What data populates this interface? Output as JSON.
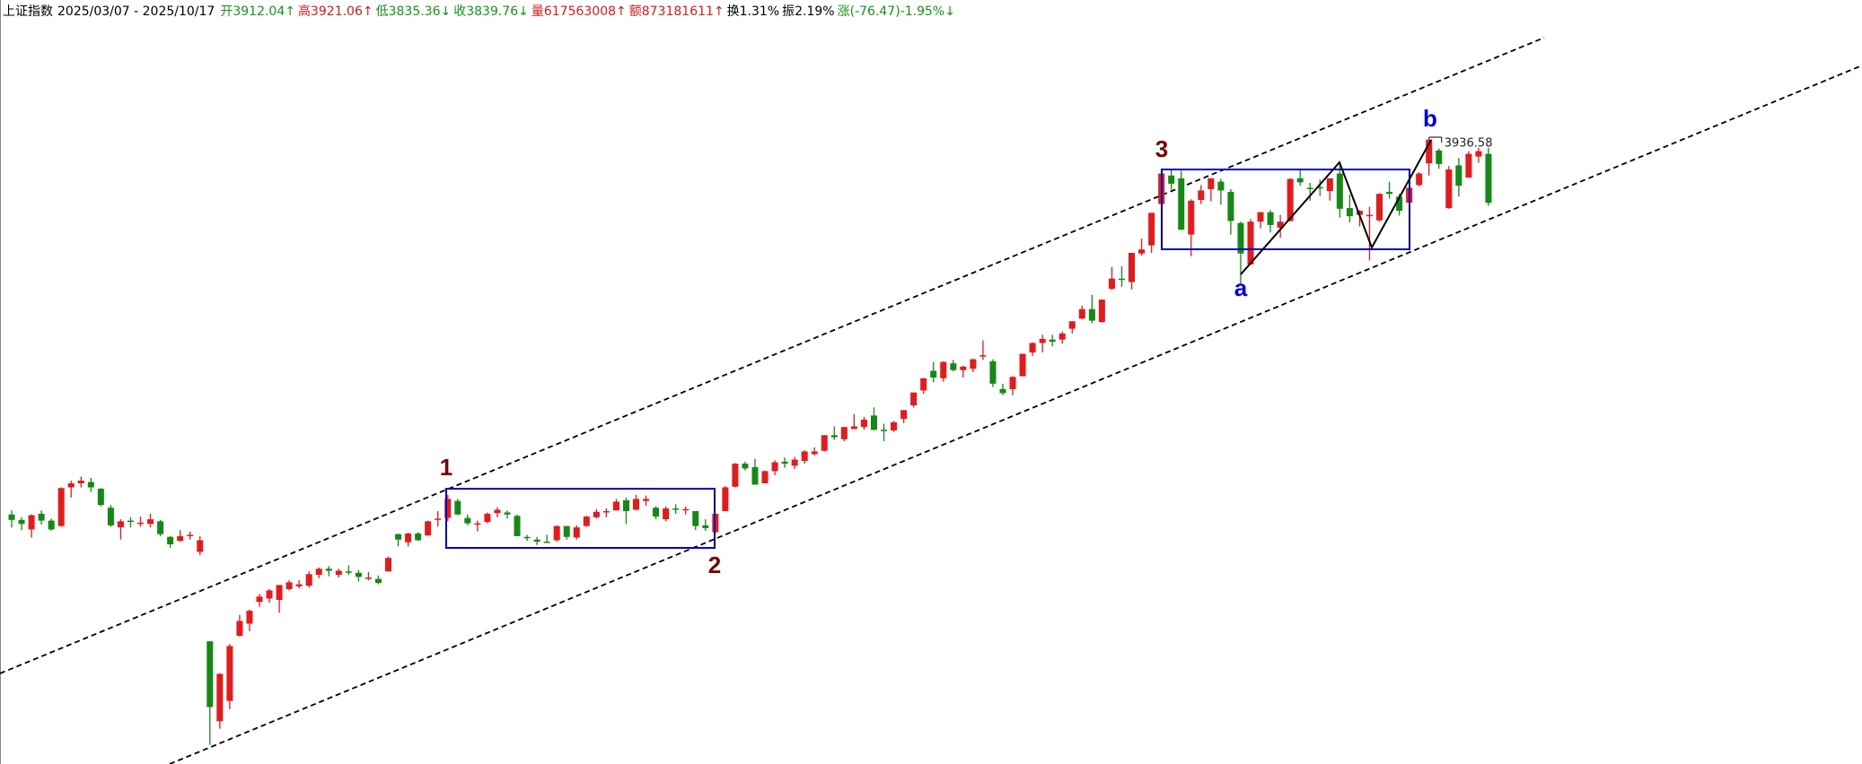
{
  "chart_data": {
    "type": "candlestick",
    "title": "上证指数",
    "period": "2025/03/07 - 2025/10/17",
    "quote": [
      {
        "text": "开3912.04↑",
        "color": "#119911"
      },
      {
        "text": "高3921.06↑",
        "color": "#e0191b"
      },
      {
        "text": "低3835.36↓",
        "color": "#119911"
      },
      {
        "text": "收3839.76↓",
        "color": "#119911"
      },
      {
        "text": "量617563008↑",
        "color": "#e0191b"
      },
      {
        "text": "额873181611↑",
        "color": "#e0191b"
      },
      {
        "text": "换1.31%",
        "color": "#000000"
      },
      {
        "text": "振2.19%",
        "color": "#000000"
      },
      {
        "text": "涨(-76.47)-1.95%↓",
        "color": "#119911"
      }
    ],
    "up_color": "#e8191b",
    "down_color": "#138a13",
    "open": [
      3380,
      3372,
      3358,
      3381,
      3371,
      3363,
      3420,
      3426,
      3428,
      3418,
      3390,
      3361,
      3371,
      3367,
      3366,
      3370,
      3347,
      3341,
      3350,
      3325,
      3193,
      3075,
      3105,
      3201,
      3219,
      3251,
      3256,
      3254,
      3270,
      3274,
      3275,
      3291,
      3300,
      3291,
      3296,
      3294,
      3287,
      3285,
      3296,
      3351,
      3339,
      3352,
      3349,
      3372,
      3375,
      3400,
      3375,
      3366,
      3369,
      3382,
      3383,
      3378,
      3347,
      3343,
      3340,
      3342,
      3363,
      3346,
      3363,
      3376,
      3384,
      3386,
      3401,
      3387,
      3400,
      3390,
      3373,
      3389,
      3387,
      3385,
      3364,
      3354,
      3385,
      3421,
      3455,
      3450,
      3426,
      3444,
      3458,
      3452,
      3459,
      3469,
      3474,
      3497,
      3491,
      3506,
      3509,
      3526,
      3505,
      3504,
      3521,
      3541,
      3563,
      3592,
      3581,
      3603,
      3593,
      3595,
      3613,
      3606,
      3565,
      3565,
      3584,
      3619,
      3633,
      3638,
      3638,
      3654,
      3669,
      3683,
      3664,
      3713,
      3728,
      3723,
      3765,
      3777,
      3838,
      3880,
      3876,
      3793,
      3844,
      3860,
      3871,
      3856,
      3810,
      3749,
      3812,
      3826,
      3803,
      3813,
      3876,
      3862,
      3863,
      3857,
      3883,
      3832,
      3822,
      3822,
      3814,
      3856,
      3849,
      3840,
      3866,
      3898,
      3917,
      3832,
      3895,
      3877,
      3908,
      3912.04
    ],
    "high": [
      3386,
      3376,
      3380,
      3386,
      3374,
      3420,
      3430,
      3436,
      3434,
      3419,
      3394,
      3373,
      3376,
      3377,
      3381,
      3372,
      3348,
      3357,
      3355,
      3348,
      3193,
      3146,
      3189,
      3232,
      3240,
      3263,
      3270,
      3276,
      3283,
      3283,
      3296,
      3302,
      3304,
      3300,
      3305,
      3298,
      3295,
      3290,
      3318,
      3352,
      3353,
      3354,
      3371,
      3385,
      3409,
      3403,
      3380,
      3371,
      3383,
      3391,
      3386,
      3380,
      3350,
      3347,
      3350,
      3364,
      3363,
      3364,
      3378,
      3388,
      3389,
      3403,
      3405,
      3409,
      3408,
      3392,
      3392,
      3395,
      3392,
      3385,
      3373,
      3382,
      3422,
      3456,
      3458,
      3462,
      3445,
      3460,
      3464,
      3465,
      3475,
      3479,
      3497,
      3510,
      3509,
      3528,
      3524,
      3538,
      3514,
      3518,
      3534,
      3560,
      3581,
      3605,
      3606,
      3608,
      3600,
      3610,
      3637,
      3609,
      3573,
      3584,
      3617,
      3634,
      3645,
      3645,
      3650,
      3665,
      3688,
      3704,
      3697,
      3745,
      3746,
      3766,
      3787,
      3825,
      3888,
      3888,
      3887,
      3845,
      3866,
      3876,
      3875,
      3860,
      3812,
      3816,
      3826,
      3829,
      3822,
      3876,
      3888,
      3869,
      3874,
      3876,
      3899,
      3852,
      3829,
      3834,
      3854,
      3871,
      3853,
      3863,
      3885,
      3936.58,
      3920,
      3894,
      3906,
      3916,
      3921,
      3921.06
    ],
    "low": [
      3361,
      3357,
      3346,
      3365,
      3356,
      3362,
      3405,
      3420,
      3413,
      3392,
      3362,
      3343,
      3361,
      3362,
      3361,
      3348,
      3331,
      3340,
      3343,
      3320,
      3040,
      3064,
      3093,
      3200,
      3208,
      3244,
      3250,
      3235,
      3268,
      3271,
      3272,
      3286,
      3289,
      3287,
      3291,
      3281,
      3283,
      3277,
      3296,
      3333,
      3333,
      3341,
      3349,
      3362,
      3370,
      3379,
      3364,
      3355,
      3367,
      3376,
      3374,
      3348,
      3341,
      3335,
      3338,
      3340,
      3343,
      3343,
      3362,
      3374,
      3376,
      3386,
      3366,
      3386,
      3393,
      3373,
      3370,
      3381,
      3380,
      3357,
      3356,
      3352,
      3385,
      3420,
      3445,
      3424,
      3426,
      3438,
      3449,
      3447,
      3455,
      3467,
      3473,
      3490,
      3488,
      3506,
      3505,
      3504,
      3488,
      3502,
      3515,
      3538,
      3558,
      3575,
      3576,
      3591,
      3582,
      3590,
      3608,
      3568,
      3556,
      3556,
      3584,
      3614,
      3619,
      3628,
      3632,
      3647,
      3668,
      3662,
      3663,
      3711,
      3716,
      3712,
      3762,
      3766,
      3835,
      3859,
      3800,
      3761,
      3838,
      3842,
      3837,
      3793,
      3718,
      3748,
      3802,
      3796,
      3788,
      3812,
      3865,
      3843,
      3850,
      3843,
      3818,
      3811,
      3805,
      3755,
      3812,
      3846,
      3821,
      3836,
      3864,
      3880,
      3890,
      3831,
      3849,
      3877,
      3899,
      3835.36
    ],
    "close": [
      3372,
      3366,
      3379,
      3371,
      3358,
      3419,
      3426,
      3430,
      3420,
      3394,
      3364,
      3370,
      3369,
      3368,
      3373,
      3351,
      3336,
      3348,
      3350,
      3342,
      3096,
      3145,
      3186,
      3223,
      3238,
      3259,
      3268,
      3276,
      3280,
      3277,
      3292,
      3300,
      3297,
      3297,
      3295,
      3288,
      3287,
      3279,
      3316,
      3343,
      3352,
      3342,
      3370,
      3374,
      3403,
      3380,
      3367,
      3367,
      3381,
      3387,
      3380,
      3348,
      3346,
      3340,
      3339,
      3363,
      3347,
      3361,
      3377,
      3384,
      3385,
      3399,
      3385,
      3403,
      3403,
      3377,
      3389,
      3387,
      3388,
      3363,
      3360,
      3381,
      3420,
      3455,
      3448,
      3424,
      3444,
      3457,
      3455,
      3461,
      3473,
      3473,
      3497,
      3494,
      3509,
      3510,
      3520,
      3505,
      3503,
      3516,
      3534,
      3560,
      3581,
      3582,
      3605,
      3593,
      3598,
      3609,
      3615,
      3573,
      3559,
      3583,
      3617,
      3633,
      3639,
      3635,
      3647,
      3665,
      3683,
      3666,
      3697,
      3728,
      3727,
      3766,
      3771,
      3825,
      3883,
      3868,
      3800,
      3843,
      3858,
      3876,
      3858,
      3813,
      3765,
      3812,
      3826,
      3807,
      3812,
      3875,
      3870,
      3860,
      3862,
      3876,
      3831,
      3820,
      3828,
      3822,
      3853,
      3853,
      3828,
      3862,
      3883,
      3933,
      3897,
      3889,
      3865,
      3912,
      3916,
      3839.76
    ],
    "annotations": [
      {
        "text": "1",
        "color": "#7a0000"
      },
      {
        "text": "2",
        "color": "#7a0000"
      },
      {
        "text": "3",
        "color": "#7a0000"
      },
      {
        "text": "a",
        "color": "#0000ee"
      },
      {
        "text": "b",
        "color": "#0000ee"
      }
    ]
  }
}
